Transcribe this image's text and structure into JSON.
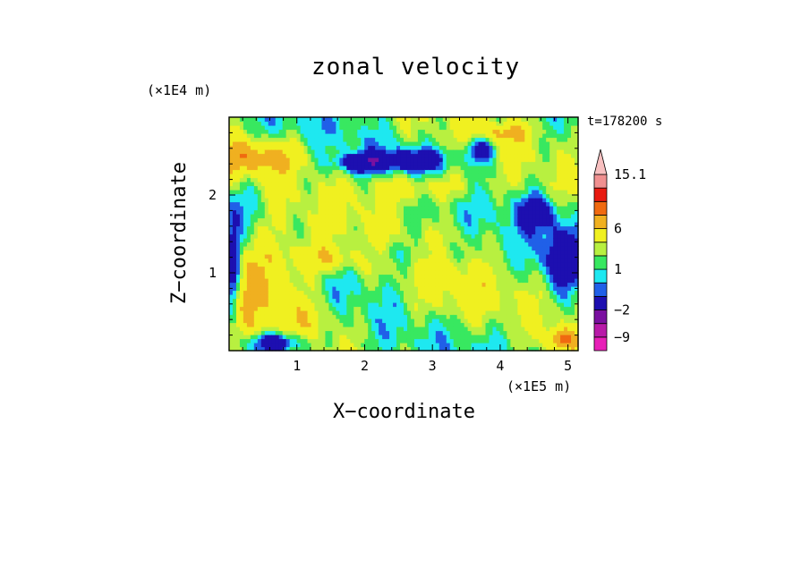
{
  "chart_data": {
    "type": "heatmap",
    "title": "zonal velocity",
    "xlabel": "X−coordinate",
    "ylabel": "Z−coordinate",
    "x_unit_label": "(×1E5 m)",
    "y_unit_label": "(×1E4 m)",
    "time_label": "t=178200 s",
    "xlim": [
      0,
      5.15
    ],
    "ylim": [
      0,
      3.0
    ],
    "x_ticks": [
      1,
      2,
      3,
      4,
      5
    ],
    "y_ticks": [
      1,
      2
    ],
    "x_tick_labels": [
      "1",
      "2",
      "3",
      "4",
      "5"
    ],
    "y_tick_labels": [
      "1",
      "2"
    ],
    "colorbar": {
      "levels": [
        -12,
        -9,
        -6,
        -2,
        -1,
        0,
        1,
        2,
        4,
        6,
        9,
        12,
        15.1
      ],
      "labeled_values": [
        15.1,
        6,
        1,
        -2,
        -9
      ],
      "labels": [
        "15.1",
        "6",
        "1",
        "−2",
        "−9"
      ],
      "colors": [
        "#e81fb8",
        "#b81aa8",
        "#7a10a0",
        "#1d0fb0",
        "#2060e8",
        "#1ee8f0",
        "#38e860",
        "#b8f040",
        "#f0f020",
        "#f0b020",
        "#f06a10",
        "#e81a10",
        "#f09090",
        "#f8c0c0"
      ]
    },
    "features": [
      {
        "x": 2.7,
        "z": 2.45,
        "value": -5,
        "sx": 0.35,
        "sz": 0.1
      },
      {
        "x": 1.95,
        "z": 2.42,
        "value": -5,
        "sx": 0.25,
        "sz": 0.08
      },
      {
        "x": 3.7,
        "z": 2.6,
        "value": -5,
        "sx": 0.15,
        "sz": 0.12
      },
      {
        "x": 4.55,
        "z": 1.8,
        "value": -4,
        "sx": 0.2,
        "sz": 0.15
      },
      {
        "x": 4.9,
        "z": 1.2,
        "value": -4,
        "sx": 0.2,
        "sz": 0.3
      },
      {
        "x": 0.05,
        "z": 1.0,
        "value": -6,
        "sx": 0.08,
        "sz": 0.4
      },
      {
        "x": 0.7,
        "z": 0.1,
        "value": -6,
        "sx": 0.3,
        "sz": 0.1
      },
      {
        "x": 0.4,
        "z": 2.5,
        "value": 4,
        "sx": 0.5,
        "sz": 0.15
      },
      {
        "x": 0.5,
        "z": 1.0,
        "value": 4,
        "sx": 0.5,
        "sz": 0.4
      },
      {
        "x": 2.8,
        "z": 2.1,
        "value": 3,
        "sx": 0.6,
        "sz": 0.15
      },
      {
        "x": 1.5,
        "z": 1.2,
        "value": 3,
        "sx": 0.4,
        "sz": 0.12
      },
      {
        "x": 4.0,
        "z": 2.8,
        "value": 3,
        "sx": 0.3,
        "sz": 0.1
      },
      {
        "x": 3.2,
        "z": 0.7,
        "value": 1.5,
        "sx": 0.5,
        "sz": 0.3
      },
      {
        "x": 1.2,
        "z": 0.4,
        "value": 1.5,
        "sx": 0.4,
        "sz": 0.2
      },
      {
        "x": 2.0,
        "z": 1.8,
        "value": 0.5,
        "sx": 0.4,
        "sz": 0.15
      },
      {
        "x": 3.5,
        "z": 1.5,
        "value": 0.5,
        "sx": 0.35,
        "sz": 0.15
      },
      {
        "x": 0.2,
        "z": 1.9,
        "value": -1.5,
        "sx": 0.25,
        "sz": 0.2
      },
      {
        "x": 2.4,
        "z": 1.25,
        "value": -1.5,
        "sx": 0.5,
        "sz": 0.1
      },
      {
        "x": 4.9,
        "z": 0.15,
        "value": 5,
        "sx": 0.15,
        "sz": 0.1
      }
    ]
  }
}
